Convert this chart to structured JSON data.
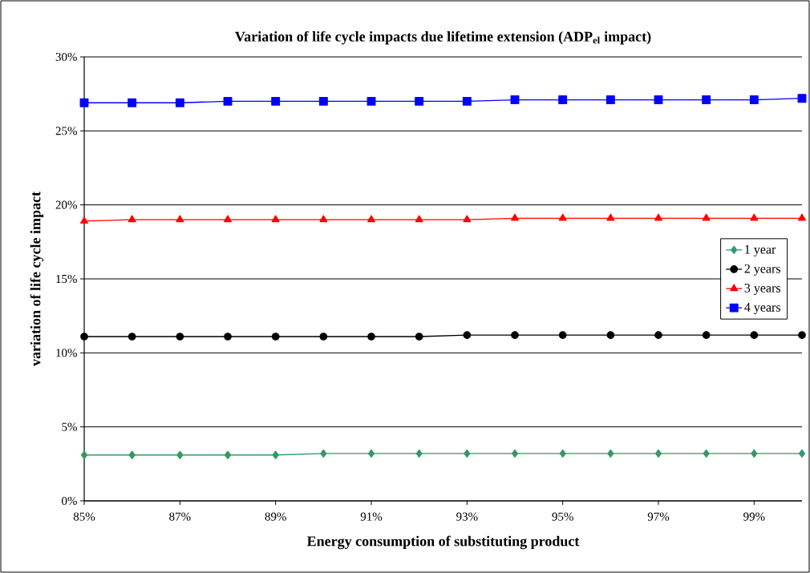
{
  "chart_data": {
    "type": "line",
    "title": "Variation of life cycle impacts due lifetime extension (ADP$_{el}$ impact)",
    "xlabel": "Energy consumption of substituting product",
    "ylabel": "variation of life cycle impact",
    "x": [
      85,
      86,
      87,
      88,
      89,
      90,
      91,
      92,
      93,
      94,
      95,
      96,
      97,
      98,
      99,
      100
    ],
    "series": [
      {
        "name": "1 year",
        "color": "#339966",
        "marker": "diamond",
        "values": [
          3.1,
          3.1,
          3.1,
          3.1,
          3.1,
          3.2,
          3.2,
          3.2,
          3.2,
          3.2,
          3.2,
          3.2,
          3.2,
          3.2,
          3.2,
          3.2
        ]
      },
      {
        "name": "2 years",
        "color": "#000000",
        "marker": "circle",
        "values": [
          11.1,
          11.1,
          11.1,
          11.1,
          11.1,
          11.1,
          11.1,
          11.1,
          11.2,
          11.2,
          11.2,
          11.2,
          11.2,
          11.2,
          11.2,
          11.2
        ]
      },
      {
        "name": "3 years",
        "color": "#ff0000",
        "marker": "triangle",
        "values": [
          18.9,
          19.0,
          19.0,
          19.0,
          19.0,
          19.0,
          19.0,
          19.0,
          19.0,
          19.1,
          19.1,
          19.1,
          19.1,
          19.1,
          19.1,
          19.1
        ]
      },
      {
        "name": "4 years",
        "color": "#0000ff",
        "marker": "square",
        "values": [
          26.9,
          26.9,
          26.9,
          27.0,
          27.0,
          27.0,
          27.0,
          27.0,
          27.0,
          27.1,
          27.1,
          27.1,
          27.1,
          27.1,
          27.1,
          27.2
        ]
      }
    ],
    "xlim": [
      85,
      100
    ],
    "xticks": [
      {
        "value": 85,
        "label": "85%"
      },
      {
        "value": 87,
        "label": "87%"
      },
      {
        "value": 89,
        "label": "89%"
      },
      {
        "value": 91,
        "label": "91%"
      },
      {
        "value": 93,
        "label": "93%"
      },
      {
        "value": 95,
        "label": "95%"
      },
      {
        "value": 97,
        "label": "97%"
      },
      {
        "value": 99,
        "label": "99%"
      }
    ],
    "ylim": [
      0,
      30
    ],
    "yticks": [
      {
        "value": 0,
        "label": "0%"
      },
      {
        "value": 5,
        "label": "5%"
      },
      {
        "value": 10,
        "label": "10%"
      },
      {
        "value": 15,
        "label": "15%"
      },
      {
        "value": 20,
        "label": "20%"
      },
      {
        "value": 25,
        "label": "25%"
      },
      {
        "value": 30,
        "label": "30%"
      }
    ],
    "grid": "y",
    "legend": "right"
  }
}
